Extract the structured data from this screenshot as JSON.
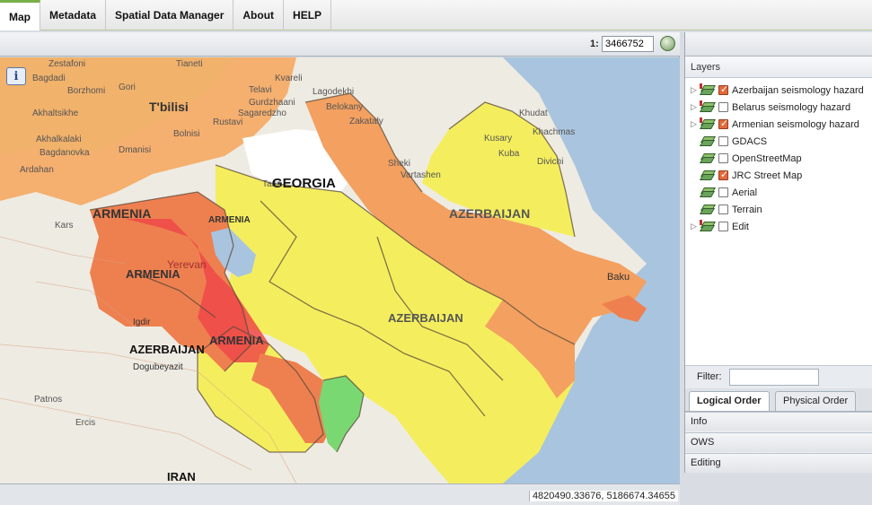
{
  "nav": {
    "tabs": [
      {
        "label": "Map",
        "active": true
      },
      {
        "label": "Metadata"
      },
      {
        "label": "Spatial Data Manager"
      },
      {
        "label": "About"
      },
      {
        "label": "HELP"
      }
    ]
  },
  "map_toolbar": {
    "scale_prefix": "1:",
    "scale_value": "3466752",
    "zoom_icon": "globe-zoom-icon"
  },
  "map": {
    "info_button": "i",
    "country_labels": [
      "GEORGIA",
      "ARMENIA",
      "ARMENIA",
      "ARMENIA",
      "ARMENIA",
      "AZERBAIJAN",
      "AZERBAIJAN",
      "AZERBAIJAN",
      "IRAN"
    ],
    "city_labels": [
      "Zestafoni",
      "Tianeti",
      "Kvareli",
      "Bagdadi",
      "Borzhomi",
      "Gori",
      "Akhaltsikhe",
      "T'bilisi",
      "Sagaredzho",
      "Rustavi",
      "Telavi",
      "Gurdzhaani",
      "Lagodekhi",
      "Belokany",
      "Zakataly",
      "Khudat",
      "Kusary",
      "Khachmas",
      "Kuba",
      "Divichi",
      "Sheki",
      "Vartashen",
      "Akhalkalaki",
      "Bolnisi",
      "Dmanisi",
      "Bagdanovka",
      "Ardahan",
      "Kars",
      "Yerevan",
      "Igdir",
      "Dogubeyazit",
      "Patnos",
      "Ercis",
      "Baku",
      "Tauz"
    ],
    "colors": {
      "low": "#f4ee5e",
      "medium": "#f6a55a",
      "high": "#ee7050",
      "very_high": "#ee4848",
      "green_zone": "#7ad872",
      "sea": "#a9c4de"
    }
  },
  "status": {
    "coords": "4820490.33676, 5186674.34655"
  },
  "side": {
    "title": "Layers",
    "layers": [
      {
        "label": "Azerbaijan seismology hazard",
        "checked": true,
        "expandable": true
      },
      {
        "label": "Belarus seismology hazard",
        "checked": false,
        "expandable": true
      },
      {
        "label": "Armenian seismology hazard",
        "checked": true,
        "expandable": true
      },
      {
        "label": "GDACS",
        "checked": false,
        "expandable": false
      },
      {
        "label": "OpenStreetMap",
        "checked": false,
        "expandable": false
      },
      {
        "label": "JRC Street Map",
        "checked": true,
        "expandable": false
      },
      {
        "label": "Aerial",
        "checked": false,
        "expandable": false
      },
      {
        "label": "Terrain",
        "checked": false,
        "expandable": false
      },
      {
        "label": "Edit",
        "checked": false,
        "expandable": true
      }
    ],
    "filter_label": "Filter:",
    "filter_value": "",
    "order_tabs": {
      "logical": "Logical Order",
      "physical": "Physical Order"
    },
    "accordion": {
      "info": "Info",
      "ows": "OWS",
      "editing": "Editing"
    }
  }
}
